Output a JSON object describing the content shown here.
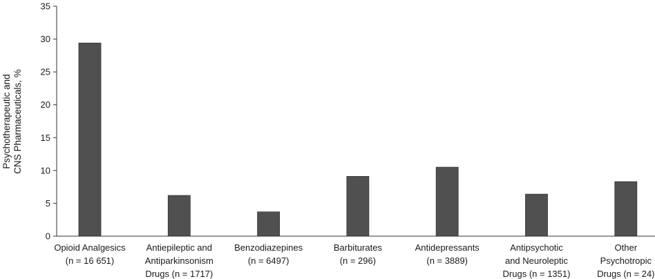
{
  "chart_data": {
    "type": "bar",
    "categories": [
      [
        "Opioid Analgesics",
        "(n = 16 651)"
      ],
      [
        "Antiepileptic and",
        "Antiparkinsonism",
        "Drugs (n = 1717)"
      ],
      [
        "Benzodiazepines",
        "(n = 6497)"
      ],
      [
        "Barbiturates",
        "(n = 296)"
      ],
      [
        "Antidepressants",
        "(n = 3889)"
      ],
      [
        "Antipsychotic",
        "and Neuroleptic",
        "Drugs (n = 1351)"
      ],
      [
        "Other",
        "Psychotropic",
        "Drugs (n = 24)"
      ]
    ],
    "values": [
      29.4,
      6.2,
      3.7,
      9.1,
      10.5,
      6.4,
      8.3
    ],
    "ylabel": [
      "Psychotherapeutic and",
      "CNS Pharmaceuticals, %"
    ],
    "xlabel": "",
    "ylim": [
      0,
      35
    ],
    "yticks": [
      "0",
      "5",
      "10",
      "15",
      "20",
      "25",
      "30",
      "35"
    ],
    "grid": false,
    "bar_color": "#505050",
    "axis_color": "#333333"
  }
}
